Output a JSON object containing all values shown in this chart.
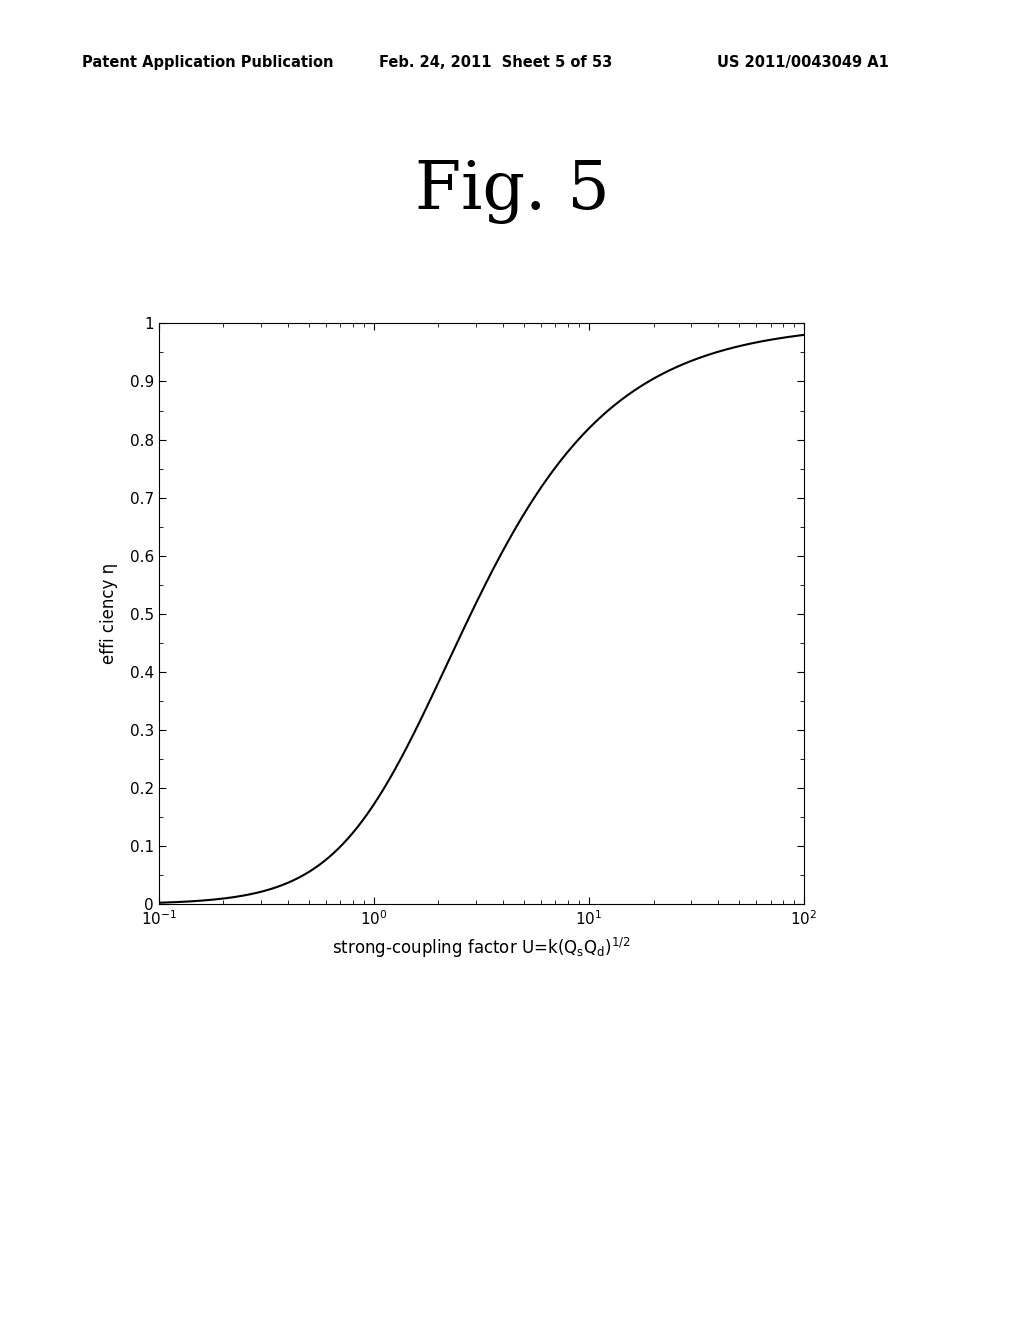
{
  "title": "Fig. 5",
  "header_left": "Patent Application Publication",
  "header_center": "Feb. 24, 2011  Sheet 5 of 53",
  "header_right": "US 2011/0043049 A1",
  "ylabel": "effi ciency η",
  "xmin": 0.1,
  "xmax": 100.0,
  "ymin": 0.0,
  "ymax": 1.0,
  "line_color": "#000000",
  "background_color": "#ffffff",
  "fig_label_fontsize": 48,
  "axis_label_fontsize": 12,
  "tick_label_fontsize": 11,
  "header_fontsize": 10.5
}
